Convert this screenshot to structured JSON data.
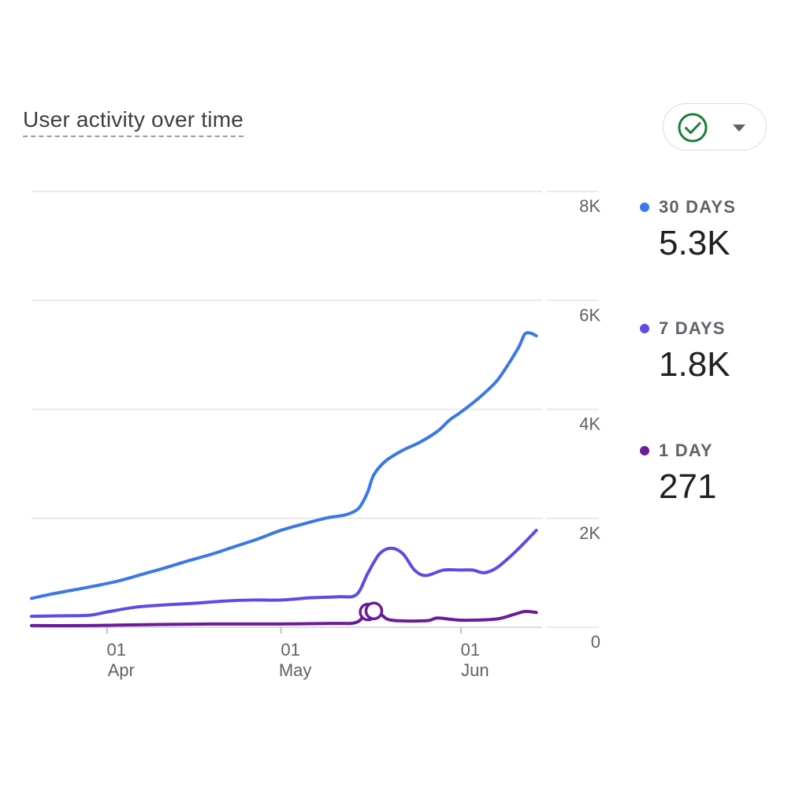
{
  "card": {
    "title": "User activity over time",
    "status_icon": "check-circle-icon",
    "dropdown_icon": "caret-down-icon"
  },
  "legend": [
    {
      "label": "30 DAYS",
      "value": "5.3K",
      "color": "#3b78e7"
    },
    {
      "label": "7 DAYS",
      "value": "1.8K",
      "color": "#5b4ce6"
    },
    {
      "label": "1 DAY",
      "value": "271",
      "color": "#6a1b9a"
    }
  ],
  "chart_data": {
    "type": "line",
    "title": "User activity over time",
    "xlabel": "",
    "ylabel": "",
    "ylim": [
      0,
      8000
    ],
    "yticks": [
      {
        "label": "8K",
        "value": 8000
      },
      {
        "label": "6K",
        "value": 6000
      },
      {
        "label": "4K",
        "value": 4000
      },
      {
        "label": "2K",
        "value": 2000
      },
      {
        "label": "0",
        "value": 0
      }
    ],
    "xlim": [
      "2024-03-19",
      "2024-06-15"
    ],
    "xticks": [
      {
        "day": "01",
        "month": "Apr",
        "date": "2024-04-01"
      },
      {
        "day": "01",
        "month": "May",
        "date": "2024-05-01"
      },
      {
        "day": "01",
        "month": "Jun",
        "date": "2024-06-01"
      }
    ],
    "grid": true,
    "legend_position": "right",
    "series": [
      {
        "name": "30 DAYS",
        "color": "#3b78e7",
        "points": [
          [
            "2024-03-19",
            530
          ],
          [
            "2024-03-22",
            600
          ],
          [
            "2024-03-26",
            680
          ],
          [
            "2024-03-30",
            760
          ],
          [
            "2024-04-03",
            850
          ],
          [
            "2024-04-07",
            970
          ],
          [
            "2024-04-11",
            1090
          ],
          [
            "2024-04-15",
            1220
          ],
          [
            "2024-04-19",
            1340
          ],
          [
            "2024-04-23",
            1480
          ],
          [
            "2024-04-27",
            1620
          ],
          [
            "2024-05-01",
            1780
          ],
          [
            "2024-05-05",
            1900
          ],
          [
            "2024-05-09",
            2010
          ],
          [
            "2024-05-12",
            2060
          ],
          [
            "2024-05-14",
            2150
          ],
          [
            "2024-05-15",
            2280
          ],
          [
            "2024-05-16",
            2500
          ],
          [
            "2024-05-17",
            2800
          ],
          [
            "2024-05-19",
            3050
          ],
          [
            "2024-05-22",
            3250
          ],
          [
            "2024-05-25",
            3400
          ],
          [
            "2024-05-28",
            3600
          ],
          [
            "2024-05-30",
            3800
          ],
          [
            "2024-06-01",
            3950
          ],
          [
            "2024-06-04",
            4200
          ],
          [
            "2024-06-07",
            4500
          ],
          [
            "2024-06-09",
            4800
          ],
          [
            "2024-06-11",
            5150
          ],
          [
            "2024-06-12",
            5380
          ],
          [
            "2024-06-13",
            5400
          ],
          [
            "2024-06-14",
            5350
          ]
        ]
      },
      {
        "name": "7 DAYS",
        "color": "#5b4ce6",
        "points": [
          [
            "2024-03-19",
            200
          ],
          [
            "2024-03-24",
            210
          ],
          [
            "2024-03-29",
            220
          ],
          [
            "2024-04-01",
            280
          ],
          [
            "2024-04-06",
            370
          ],
          [
            "2024-04-11",
            410
          ],
          [
            "2024-04-16",
            440
          ],
          [
            "2024-04-21",
            480
          ],
          [
            "2024-04-26",
            500
          ],
          [
            "2024-05-01",
            500
          ],
          [
            "2024-05-06",
            540
          ],
          [
            "2024-05-11",
            560
          ],
          [
            "2024-05-14",
            600
          ],
          [
            "2024-05-16",
            1000
          ],
          [
            "2024-05-18",
            1350
          ],
          [
            "2024-05-20",
            1450
          ],
          [
            "2024-05-22",
            1350
          ],
          [
            "2024-05-24",
            1050
          ],
          [
            "2024-05-26",
            950
          ],
          [
            "2024-05-29",
            1050
          ],
          [
            "2024-06-01",
            1050
          ],
          [
            "2024-06-03",
            1050
          ],
          [
            "2024-06-05",
            1000
          ],
          [
            "2024-06-07",
            1080
          ],
          [
            "2024-06-09",
            1250
          ],
          [
            "2024-06-11",
            1450
          ],
          [
            "2024-06-14",
            1780
          ]
        ]
      },
      {
        "name": "1 DAY",
        "color": "#6a1b9a",
        "points": [
          [
            "2024-03-19",
            30
          ],
          [
            "2024-03-28",
            30
          ],
          [
            "2024-04-03",
            40
          ],
          [
            "2024-04-10",
            50
          ],
          [
            "2024-04-20",
            60
          ],
          [
            "2024-05-01",
            60
          ],
          [
            "2024-05-10",
            70
          ],
          [
            "2024-05-14",
            90
          ],
          [
            "2024-05-16",
            280
          ],
          [
            "2024-05-18",
            250
          ],
          [
            "2024-05-20",
            130
          ],
          [
            "2024-05-26",
            120
          ],
          [
            "2024-05-28",
            170
          ],
          [
            "2024-06-01",
            130
          ],
          [
            "2024-06-07",
            150
          ],
          [
            "2024-06-10",
            230
          ],
          [
            "2024-06-12",
            290
          ],
          [
            "2024-06-14",
            271
          ]
        ]
      }
    ],
    "annotations": [
      {
        "type": "marker",
        "date": "2024-05-16",
        "value": 280
      },
      {
        "type": "marker",
        "date": "2024-05-17",
        "value": 300
      }
    ]
  }
}
